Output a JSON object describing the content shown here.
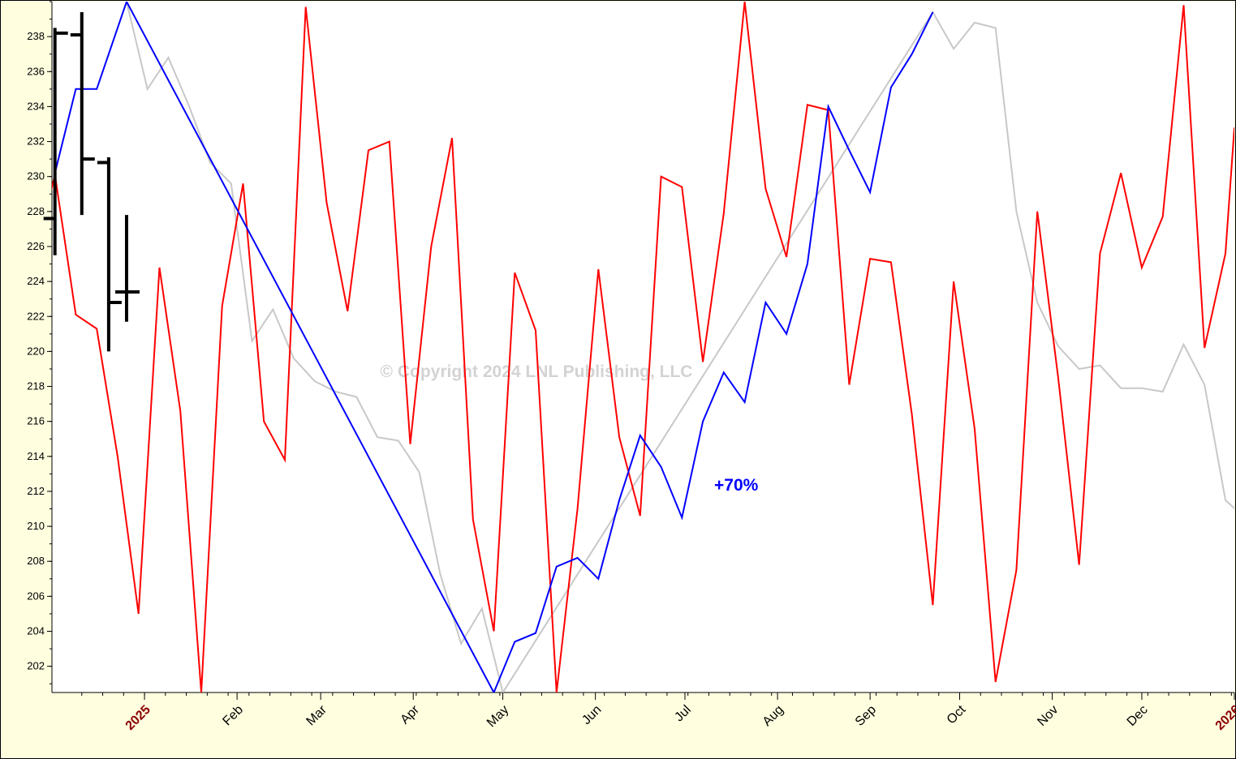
{
  "watermark": "© Copyright 2024 LNL Publishing, LLC",
  "annotation": "+70%",
  "colors": {
    "background": "#ffffe0",
    "plot_background": "#ffffff",
    "red_series": "#ff0000",
    "blue_series": "#0000ff",
    "gray_series": "#c8c8c8",
    "price_bars": "#000000",
    "watermark": "#d3d3d3",
    "annotation": "#0000ff",
    "year_label": "#8b0000",
    "month_label": "#000000"
  },
  "chart_data": {
    "type": "line",
    "x_axis": {
      "type": "date",
      "range": [
        "2024-12-01",
        "2026-01-01"
      ],
      "labels": [
        {
          "date": "2025-01-01",
          "text": "2025",
          "year": true
        },
        {
          "date": "2025-02-01",
          "text": "Feb"
        },
        {
          "date": "2025-03-01",
          "text": "Mar"
        },
        {
          "date": "2025-04-01",
          "text": "Apr"
        },
        {
          "date": "2025-05-01",
          "text": "May"
        },
        {
          "date": "2025-06-01",
          "text": "Jun"
        },
        {
          "date": "2025-07-01",
          "text": "Jul"
        },
        {
          "date": "2025-08-01",
          "text": "Aug"
        },
        {
          "date": "2025-09-01",
          "text": "Sep"
        },
        {
          "date": "2025-10-01",
          "text": "Oct"
        },
        {
          "date": "2025-11-01",
          "text": "Nov"
        },
        {
          "date": "2025-12-01",
          "text": "Dec"
        },
        {
          "date": "2026-01-01",
          "text": "2026",
          "year": true
        }
      ],
      "weekly_ticks": true
    },
    "y_axis": {
      "ylim": [
        200.5,
        240
      ],
      "ticks": [
        202,
        204,
        206,
        208,
        210,
        212,
        214,
        216,
        218,
        220,
        222,
        224,
        226,
        228,
        230,
        232,
        234,
        236,
        238
      ],
      "minor_step": 1
    },
    "series": [
      {
        "color": "#ff0000",
        "points": [
          [
            "2024-11-26",
            225.8
          ],
          [
            "2024-12-02",
            230.1
          ],
          [
            "2024-12-09",
            222.1
          ],
          [
            "2024-12-16",
            221.3
          ],
          [
            "2024-12-23",
            214.0
          ],
          [
            "2024-12-30",
            205.0
          ],
          [
            "2025-01-06",
            224.8
          ],
          [
            "2025-01-13",
            216.6
          ],
          [
            "2025-01-20",
            200.5
          ],
          [
            "2025-01-27",
            222.6
          ],
          [
            "2025-02-03",
            229.6
          ],
          [
            "2025-02-10",
            216.0
          ],
          [
            "2025-02-17",
            213.8
          ],
          [
            "2025-02-24",
            239.7
          ],
          [
            "2025-03-03",
            228.5
          ],
          [
            "2025-03-10",
            222.3
          ],
          [
            "2025-03-17",
            231.5
          ],
          [
            "2025-03-24",
            232.0
          ],
          [
            "2025-03-31",
            214.7
          ],
          [
            "2025-04-07",
            226.0
          ],
          [
            "2025-04-14",
            232.2
          ],
          [
            "2025-04-21",
            210.4
          ],
          [
            "2025-04-28",
            204.0
          ],
          [
            "2025-05-05",
            224.5
          ],
          [
            "2025-05-12",
            221.2
          ],
          [
            "2025-05-19",
            200.5
          ],
          [
            "2025-05-26",
            211.0
          ],
          [
            "2025-06-02",
            224.7
          ],
          [
            "2025-06-09",
            215.1
          ],
          [
            "2025-06-16",
            210.6
          ],
          [
            "2025-06-23",
            230.0
          ],
          [
            "2025-06-30",
            229.4
          ],
          [
            "2025-07-07",
            219.4
          ],
          [
            "2025-07-14",
            227.9
          ],
          [
            "2025-07-21",
            240.0
          ],
          [
            "2025-07-28",
            229.3
          ],
          [
            "2025-08-04",
            225.4
          ],
          [
            "2025-08-11",
            234.1
          ],
          [
            "2025-08-18",
            233.8
          ],
          [
            "2025-08-25",
            218.1
          ],
          [
            "2025-09-01",
            225.3
          ],
          [
            "2025-09-08",
            225.1
          ],
          [
            "2025-09-15",
            216.4
          ],
          [
            "2025-09-22",
            205.5
          ],
          [
            "2025-09-29",
            224.0
          ],
          [
            "2025-10-06",
            215.6
          ],
          [
            "2025-10-13",
            201.1
          ],
          [
            "2025-10-20",
            207.5
          ],
          [
            "2025-10-27",
            228.0
          ],
          [
            "2025-11-03",
            218.5
          ],
          [
            "2025-11-10",
            207.8
          ],
          [
            "2025-11-17",
            225.6
          ],
          [
            "2025-11-24",
            230.2
          ],
          [
            "2025-12-01",
            224.8
          ],
          [
            "2025-12-08",
            227.7
          ],
          [
            "2025-12-15",
            239.8
          ],
          [
            "2025-12-22",
            220.2
          ],
          [
            "2025-12-29",
            225.6
          ],
          [
            "2026-01-01",
            232.8
          ]
        ]
      },
      {
        "color": "#0000ff",
        "points": [
          [
            "2024-12-02",
            230.2
          ],
          [
            "2024-12-09",
            235.0
          ],
          [
            "2024-12-16",
            235.0
          ],
          [
            "2024-12-26",
            240.0
          ],
          [
            "2025-04-28",
            200.5
          ],
          [
            "2025-05-05",
            203.4
          ],
          [
            "2025-05-12",
            203.9
          ],
          [
            "2025-05-19",
            207.7
          ],
          [
            "2025-05-26",
            208.2
          ],
          [
            "2025-06-02",
            207.0
          ],
          [
            "2025-06-09",
            211.5
          ],
          [
            "2025-06-16",
            215.2
          ],
          [
            "2025-06-23",
            213.4
          ],
          [
            "2025-06-30",
            210.5
          ],
          [
            "2025-07-07",
            216.0
          ],
          [
            "2025-07-14",
            218.8
          ],
          [
            "2025-07-21",
            217.1
          ],
          [
            "2025-07-28",
            222.8
          ],
          [
            "2025-08-04",
            221.0
          ],
          [
            "2025-08-11",
            225.0
          ],
          [
            "2025-08-18",
            234.0
          ],
          [
            "2025-08-25",
            231.5
          ],
          [
            "2025-09-01",
            229.1
          ],
          [
            "2025-09-08",
            235.1
          ],
          [
            "2025-09-15",
            237.0
          ],
          [
            "2025-09-22",
            239.4
          ]
        ]
      },
      {
        "color": "#c8c8c8",
        "points": [
          [
            "2024-12-26",
            240.0
          ],
          [
            "2025-01-02",
            235.0
          ],
          [
            "2025-01-09",
            236.8
          ],
          [
            "2025-01-16",
            234.0
          ],
          [
            "2025-01-23",
            230.8
          ],
          [
            "2025-01-30",
            229.6
          ],
          [
            "2025-02-06",
            220.6
          ],
          [
            "2025-02-13",
            222.4
          ],
          [
            "2025-02-20",
            219.6
          ],
          [
            "2025-02-27",
            218.3
          ],
          [
            "2025-03-06",
            217.7
          ],
          [
            "2025-03-13",
            217.4
          ],
          [
            "2025-03-20",
            215.1
          ],
          [
            "2025-03-27",
            214.9
          ],
          [
            "2025-04-03",
            213.1
          ],
          [
            "2025-04-10",
            207.3
          ],
          [
            "2025-04-17",
            203.3
          ],
          [
            "2025-04-24",
            205.3
          ],
          [
            "2025-05-01",
            200.5
          ],
          [
            "2025-09-22",
            239.4
          ],
          [
            "2025-09-29",
            237.3
          ],
          [
            "2025-10-06",
            238.8
          ],
          [
            "2025-10-13",
            238.5
          ],
          [
            "2025-10-20",
            228.0
          ],
          [
            "2025-10-27",
            222.8
          ],
          [
            "2025-11-03",
            220.3
          ],
          [
            "2025-11-10",
            219.0
          ],
          [
            "2025-11-17",
            219.2
          ],
          [
            "2025-11-24",
            217.9
          ],
          [
            "2025-12-01",
            217.9
          ],
          [
            "2025-12-08",
            217.7
          ],
          [
            "2025-12-15",
            220.4
          ],
          [
            "2025-12-22",
            218.1
          ],
          [
            "2025-12-29",
            211.5
          ],
          [
            "2026-01-05",
            210.4
          ],
          [
            "2026-01-12",
            208.9
          ]
        ]
      }
    ],
    "price_bars": [
      {
        "date": "2024-12-02",
        "high": 238.5,
        "low": 225.5,
        "open": 227.6,
        "close": 238.2
      },
      {
        "date": "2024-12-11",
        "high": 239.4,
        "low": 227.8,
        "open": 238.1,
        "close": 231.0
      },
      {
        "date": "2024-12-20",
        "high": 231.1,
        "low": 220.0,
        "open": 230.8,
        "close": 222.8
      },
      {
        "date": "2024-12-26",
        "high": 227.8,
        "low": 221.7,
        "open": 223.4,
        "close": 223.4
      }
    ]
  }
}
